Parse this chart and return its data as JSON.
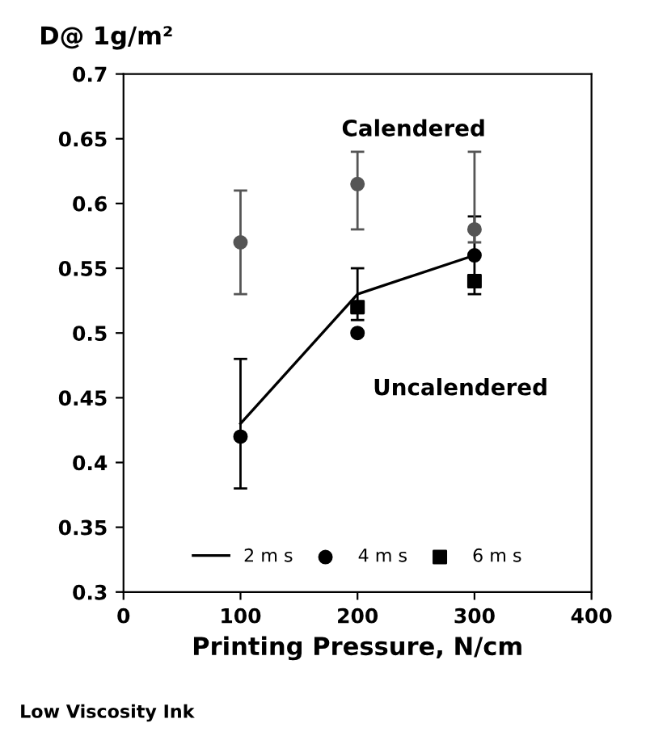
{
  "chart_data": {
    "type": "line",
    "ylabel": "D@ 1g/m²",
    "xlabel": "Printing Pressure, N/cm",
    "annotations": [
      "Calendered",
      "Uncalendered",
      "Low Viscosity Ink"
    ],
    "x": [
      100,
      200,
      300
    ],
    "series": [
      {
        "name": "2 m s",
        "color": "#000000",
        "marker": "none",
        "values": [
          0.43,
          0.53,
          0.56
        ],
        "errors": [
          [
            0.38,
            0.48
          ],
          [
            0.51,
            0.55
          ],
          [
            0.53,
            0.59
          ]
        ]
      },
      {
        "name": "4 m s",
        "type": "scatter",
        "color": "#000000",
        "marker": "circle",
        "values": [
          0.42,
          0.5,
          0.56
        ]
      },
      {
        "name": "6 m s",
        "type": "scatter",
        "color": "#000000",
        "marker": "square",
        "values": [
          null,
          0.52,
          0.54
        ]
      },
      {
        "type": "scatter",
        "color": "#555555",
        "marker": "circle",
        "values": [
          0.57,
          0.615,
          0.58
        ],
        "errors": [
          [
            0.53,
            0.61
          ],
          [
            0.58,
            0.64
          ],
          [
            0.57,
            0.64
          ]
        ]
      }
    ],
    "xlim": [
      0,
      400
    ],
    "xticks": [
      0,
      100,
      200,
      300,
      400
    ],
    "ylim": [
      0.3,
      0.7
    ],
    "yticks": [
      0.3,
      0.35,
      0.4,
      0.45,
      0.5,
      0.55,
      0.6,
      0.65,
      0.7
    ],
    "grid": false,
    "legend": "bottom"
  }
}
